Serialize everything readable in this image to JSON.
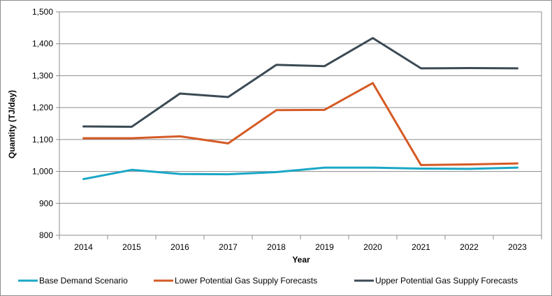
{
  "chart_data": {
    "type": "line",
    "title": "",
    "xlabel": "Year",
    "ylabel": "Quantity (TJ/day)",
    "ylim": [
      800,
      1500
    ],
    "y_ticks": [
      "800",
      "900",
      "1,000",
      "1,100",
      "1,200",
      "1,300",
      "1,400",
      "1,500"
    ],
    "y_tick_values": [
      800,
      900,
      1000,
      1100,
      1200,
      1300,
      1400,
      1500
    ],
    "categories": [
      "2014",
      "2015",
      "2016",
      "2017",
      "2018",
      "2019",
      "2020",
      "2021",
      "2022",
      "2023"
    ],
    "grid": "horizontal",
    "legend_position": "bottom",
    "series": [
      {
        "name": "Base Demand Scenario",
        "color": "#1aa7c6",
        "values": [
          976,
          1005,
          992,
          991,
          998,
          1012,
          1012,
          1009,
          1008,
          1012
        ]
      },
      {
        "name": "Lower Potential Gas Supply Forecasts",
        "color": "#d55a25",
        "values": [
          1104,
          1104,
          1110,
          1088,
          1192,
          1193,
          1277,
          1020,
          1022,
          1025
        ]
      },
      {
        "name": "Upper Potential Gas Supply Forecasts",
        "color": "#3b4a54",
        "values": [
          1141,
          1140,
          1244,
          1233,
          1334,
          1330,
          1418,
          1323,
          1324,
          1323
        ]
      }
    ]
  }
}
